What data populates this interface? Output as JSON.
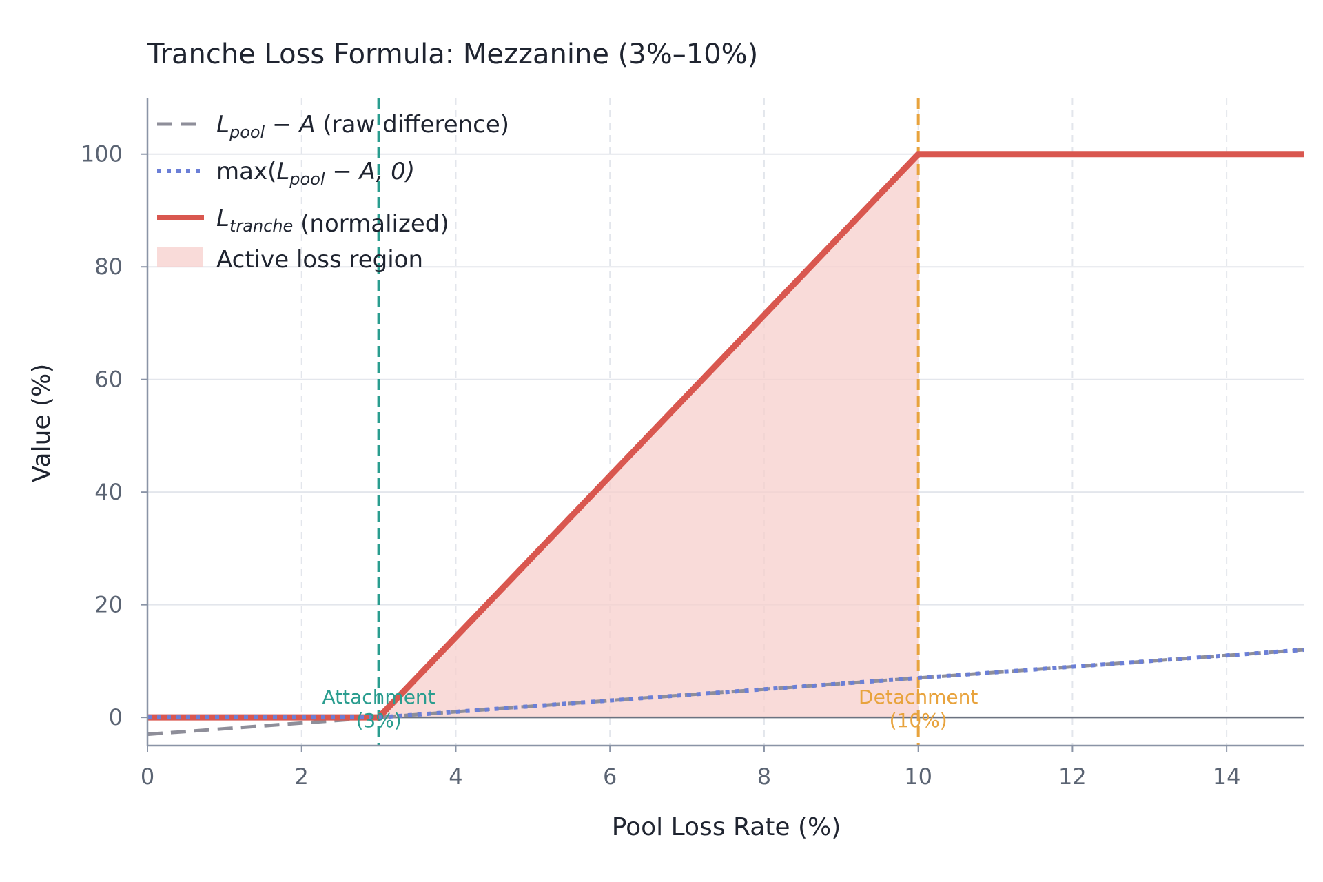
{
  "chart_data": {
    "type": "line",
    "title": "Tranche Loss Formula: Mezzanine (3%–10%)",
    "xlabel": "Pool Loss Rate (%)",
    "ylabel": "Value (%)",
    "xlim": [
      0,
      15
    ],
    "ylim": [
      -5,
      110
    ],
    "xticks": [
      0,
      2,
      4,
      6,
      8,
      10,
      12,
      14
    ],
    "yticks": [
      0,
      20,
      40,
      60,
      80,
      100
    ],
    "grid": true,
    "legend_position": "top-left",
    "series": [
      {
        "name": "raw",
        "color": "#8e8e99",
        "style": "dashed",
        "x": [
          0,
          15
        ],
        "y": [
          -3,
          12
        ]
      },
      {
        "name": "max",
        "color": "#6b7fd7",
        "style": "dotted",
        "x": [
          0,
          3,
          15
        ],
        "y": [
          0,
          0,
          12
        ]
      },
      {
        "name": "tranche",
        "color": "#d9574f",
        "style": "solid",
        "x": [
          0,
          3,
          10,
          15
        ],
        "y": [
          0,
          0,
          100,
          100
        ]
      }
    ],
    "shaded_region": {
      "x": [
        3,
        10
      ],
      "color": "#f7cfcc"
    },
    "vlines": [
      {
        "x": 3,
        "color": "#2a9d8f",
        "label": "Attachment",
        "sublabel": "(3%)"
      },
      {
        "x": 10,
        "color": "#e8a33d",
        "label": "Detachment",
        "sublabel": "(10%)"
      }
    ],
    "legend": [
      {
        "math_base": "L",
        "math_sub": "pool",
        "math_tail": " − A",
        "text": " (raw difference)"
      },
      {
        "text_pre": "max(",
        "math_base": "L",
        "math_sub": "pool",
        "math_tail": " − A, 0)",
        "text": ""
      },
      {
        "math_base": "L",
        "math_sub": "tranche",
        "math_tail": "",
        "text": " (normalized)"
      },
      {
        "text": "Active loss region"
      }
    ]
  }
}
